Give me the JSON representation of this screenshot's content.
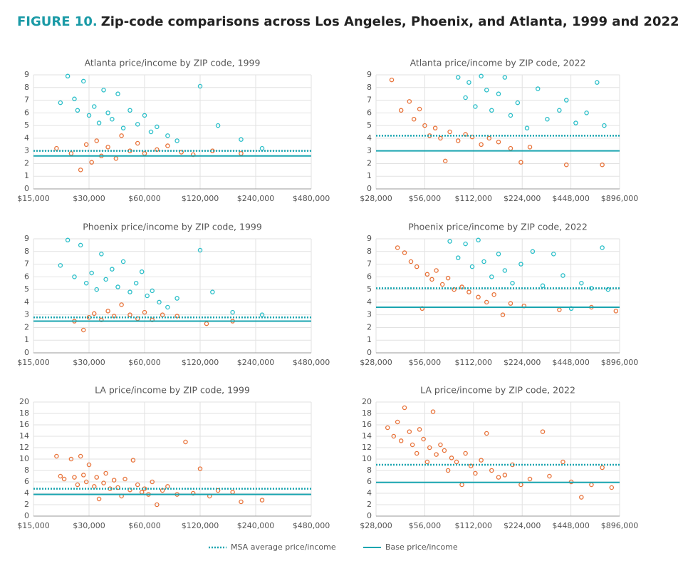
{
  "figure_label": "FIGURE 10.",
  "title": "Zip-code comparisons across Los Angeles, Phoenix, and Atlanta, 1999 and 2022",
  "legend": [
    "MSA average price/income",
    "Base price/income"
  ],
  "line_color": "#1aa5b0",
  "chart_data": [
    {
      "type": "scatter",
      "title": "Atlanta price/income by ZIP code, 1999",
      "xscale": "log",
      "grid": true,
      "xlim": [
        15000,
        480000
      ],
      "ylim": [
        0,
        9
      ],
      "xticks": [
        {
          "value": 15000,
          "label": "$15,000"
        },
        {
          "value": 30000,
          "label": "$30,000"
        },
        {
          "value": 60000,
          "label": "$60,000"
        },
        {
          "value": 120000,
          "label": "$120,000"
        },
        {
          "value": 240000,
          "label": "$240,000"
        },
        {
          "value": 480000,
          "label": "$480,000"
        }
      ],
      "yticks": [
        0,
        1,
        2,
        3,
        4,
        5,
        6,
        7,
        8,
        9
      ],
      "msa_average": 3.0,
      "base": 2.6,
      "series": [
        {
          "color": "#2bbfc9",
          "x": [
            21000,
            23000,
            25000,
            26000,
            28000,
            30000,
            32000,
            34000,
            36000,
            38000,
            40000,
            43000,
            46000,
            50000,
            55000,
            60000,
            65000,
            70000,
            80000,
            90000,
            120000,
            150000,
            200000,
            260000
          ],
          "values": [
            6.8,
            8.9,
            7.1,
            6.2,
            8.5,
            5.8,
            6.5,
            5.2,
            7.8,
            6.0,
            5.5,
            7.5,
            4.8,
            6.2,
            5.1,
            5.8,
            4.5,
            4.9,
            4.2,
            3.8,
            8.1,
            5.0,
            3.9,
            3.2
          ]
        },
        {
          "color": "#e8733a",
          "x": [
            20000,
            24000,
            27000,
            29000,
            31000,
            33000,
            35000,
            38000,
            42000,
            45000,
            50000,
            55000,
            60000,
            70000,
            80000,
            95000,
            110000,
            140000,
            200000
          ],
          "values": [
            3.2,
            2.8,
            1.5,
            3.5,
            2.1,
            3.8,
            2.6,
            3.3,
            2.4,
            4.2,
            3.0,
            3.6,
            2.8,
            3.1,
            3.4,
            2.9,
            2.7,
            3.0,
            2.8
          ]
        }
      ]
    },
    {
      "type": "scatter",
      "title": "Atlanta price/income by ZIP code, 2022",
      "xscale": "log",
      "grid": true,
      "xlim": [
        28000,
        896000
      ],
      "ylim": [
        0,
        9
      ],
      "xticks": [
        {
          "value": 28000,
          "label": "$28,000"
        },
        {
          "value": 56000,
          "label": "$56,000"
        },
        {
          "value": 112000,
          "label": "$112,000"
        },
        {
          "value": 224000,
          "label": "$224,000"
        },
        {
          "value": 448000,
          "label": "$448,000"
        },
        {
          "value": 896000,
          "label": "$896,000"
        }
      ],
      "yticks": [
        0,
        1,
        2,
        3,
        4,
        5,
        6,
        7,
        8,
        9
      ],
      "msa_average": 4.2,
      "base": 3.0,
      "series": [
        {
          "color": "#2bbfc9",
          "x": [
            90000,
            100000,
            105000,
            115000,
            125000,
            135000,
            145000,
            160000,
            175000,
            190000,
            210000,
            240000,
            280000,
            320000,
            380000,
            420000,
            480000,
            560000,
            650000,
            720000
          ],
          "values": [
            8.8,
            7.2,
            8.4,
            6.5,
            8.9,
            7.8,
            6.2,
            7.5,
            8.8,
            5.8,
            6.8,
            4.8,
            7.9,
            5.5,
            6.2,
            7.0,
            5.2,
            6.0,
            8.4,
            5.0
          ]
        },
        {
          "color": "#e8733a",
          "x": [
            35000,
            40000,
            45000,
            48000,
            52000,
            56000,
            60000,
            65000,
            70000,
            75000,
            80000,
            90000,
            100000,
            110000,
            125000,
            140000,
            160000,
            190000,
            220000,
            250000,
            420000,
            700000
          ],
          "values": [
            8.6,
            6.2,
            6.9,
            5.5,
            6.3,
            5.0,
            4.2,
            4.8,
            4.0,
            2.2,
            4.5,
            3.8,
            4.3,
            4.1,
            3.5,
            4.0,
            3.7,
            3.2,
            2.1,
            3.3,
            1.9,
            1.9
          ]
        }
      ]
    },
    {
      "type": "scatter",
      "title": "Phoenix price/income by ZIP code, 1999",
      "xscale": "log",
      "grid": true,
      "xlim": [
        15000,
        480000
      ],
      "ylim": [
        0,
        9
      ],
      "xticks": [
        {
          "value": 15000,
          "label": "$15,000"
        },
        {
          "value": 30000,
          "label": "$30,000"
        },
        {
          "value": 60000,
          "label": "$60,000"
        },
        {
          "value": 120000,
          "label": "$120,000"
        },
        {
          "value": 240000,
          "label": "$240,000"
        },
        {
          "value": 480000,
          "label": "$480,000"
        }
      ],
      "yticks": [
        0,
        1,
        2,
        3,
        4,
        5,
        6,
        7,
        8,
        9
      ],
      "msa_average": 2.8,
      "base": 2.5,
      "series": [
        {
          "color": "#2bbfc9",
          "x": [
            21000,
            23000,
            25000,
            27000,
            29000,
            31000,
            33000,
            35000,
            37000,
            40000,
            43000,
            46000,
            50000,
            54000,
            58000,
            62000,
            66000,
            72000,
            80000,
            90000,
            120000,
            140000,
            180000,
            260000
          ],
          "values": [
            6.9,
            8.9,
            6.0,
            8.5,
            5.5,
            6.3,
            5.0,
            7.8,
            5.8,
            6.6,
            5.2,
            7.2,
            4.8,
            5.5,
            6.4,
            4.5,
            4.9,
            4.0,
            3.6,
            4.3,
            8.1,
            4.8,
            3.2,
            3.0
          ]
        },
        {
          "color": "#e8733a",
          "x": [
            25000,
            28000,
            30000,
            32000,
            35000,
            38000,
            41000,
            45000,
            50000,
            55000,
            60000,
            66000,
            75000,
            90000,
            130000,
            180000
          ],
          "values": [
            2.5,
            1.8,
            2.8,
            3.1,
            2.6,
            3.3,
            2.9,
            3.8,
            3.0,
            2.7,
            3.2,
            2.6,
            3.0,
            2.9,
            2.3,
            2.5
          ]
        }
      ]
    },
    {
      "type": "scatter",
      "title": "Phoenix price/income by ZIP code, 2022",
      "xscale": "log",
      "grid": true,
      "xlim": [
        28000,
        896000
      ],
      "ylim": [
        0,
        9
      ],
      "xticks": [
        {
          "value": 28000,
          "label": "$28,000"
        },
        {
          "value": 56000,
          "label": "$56,000"
        },
        {
          "value": 112000,
          "label": "$112,000"
        },
        {
          "value": 224000,
          "label": "$224,000"
        },
        {
          "value": 448000,
          "label": "$448,000"
        },
        {
          "value": 896000,
          "label": "$896,000"
        }
      ],
      "yticks": [
        0,
        1,
        2,
        3,
        4,
        5,
        6,
        7,
        8,
        9
      ],
      "msa_average": 5.1,
      "base": 3.6,
      "series": [
        {
          "color": "#2bbfc9",
          "x": [
            80000,
            90000,
            100000,
            110000,
            120000,
            130000,
            145000,
            160000,
            175000,
            195000,
            220000,
            260000,
            300000,
            350000,
            400000,
            450000,
            520000,
            600000,
            700000,
            760000
          ],
          "values": [
            8.8,
            7.5,
            8.6,
            6.8,
            8.9,
            7.2,
            6.0,
            7.8,
            6.5,
            5.5,
            7.0,
            8.0,
            5.3,
            7.8,
            6.1,
            3.5,
            5.5,
            5.1,
            8.3,
            5.0
          ]
        },
        {
          "color": "#e8733a",
          "x": [
            38000,
            42000,
            46000,
            50000,
            54000,
            58000,
            62000,
            66000,
            72000,
            78000,
            85000,
            95000,
            105000,
            120000,
            135000,
            150000,
            170000,
            190000,
            230000,
            380000,
            600000,
            850000
          ],
          "values": [
            8.3,
            7.9,
            7.2,
            6.8,
            3.5,
            6.2,
            5.8,
            6.5,
            5.4,
            5.9,
            5.0,
            5.2,
            4.8,
            4.4,
            4.0,
            4.6,
            3.0,
            3.9,
            3.7,
            3.4,
            3.6,
            3.3
          ]
        }
      ]
    },
    {
      "type": "scatter",
      "title": "LA price/income by ZIP code, 1999",
      "xscale": "log",
      "grid": true,
      "xlim": [
        15000,
        480000
      ],
      "ylim": [
        0,
        20
      ],
      "xticks": [
        {
          "value": 15000,
          "label": "$15,000"
        },
        {
          "value": 30000,
          "label": "$30,000"
        },
        {
          "value": 60000,
          "label": "$60,000"
        },
        {
          "value": 120000,
          "label": "$120,000"
        },
        {
          "value": 240000,
          "label": "$240,000"
        },
        {
          "value": 480000,
          "label": "$480,000"
        }
      ],
      "yticks": [
        0,
        2,
        4,
        6,
        8,
        10,
        12,
        14,
        16,
        18,
        20
      ],
      "msa_average": 4.8,
      "base": 3.8,
      "series": [
        {
          "color": "#e8733a",
          "x": [
            20000,
            21000,
            22000,
            24000,
            25000,
            26000,
            27000,
            28000,
            29000,
            30000,
            32000,
            33000,
            34000,
            36000,
            37000,
            39000,
            41000,
            43000,
            45000,
            47000,
            50000,
            52000,
            55000,
            58000,
            60000,
            63000,
            66000,
            70000,
            75000,
            80000,
            90000,
            100000,
            110000,
            120000,
            135000,
            150000,
            180000,
            200000,
            260000
          ],
          "values": [
            10.5,
            7.0,
            6.5,
            10.0,
            6.8,
            5.5,
            10.5,
            7.2,
            6.0,
            9.0,
            5.2,
            6.8,
            3.0,
            5.8,
            7.5,
            4.8,
            6.3,
            5.0,
            3.5,
            6.5,
            4.6,
            9.8,
            5.5,
            4.2,
            4.8,
            3.8,
            6.0,
            2.0,
            4.5,
            5.2,
            3.8,
            13.0,
            4.0,
            8.3,
            3.5,
            4.5,
            4.2,
            2.5,
            2.8
          ]
        }
      ]
    },
    {
      "type": "scatter",
      "title": "LA price/income by ZIP code, 2022",
      "xscale": "log",
      "grid": true,
      "xlim": [
        28000,
        896000
      ],
      "ylim": [
        0,
        20
      ],
      "xticks": [
        {
          "value": 28000,
          "label": "$28,000"
        },
        {
          "value": 56000,
          "label": "$56,000"
        },
        {
          "value": 112000,
          "label": "$112,000"
        },
        {
          "value": 224000,
          "label": "$224,000"
        },
        {
          "value": 448000,
          "label": "$448,000"
        },
        {
          "value": 896000,
          "label": "$896,000"
        }
      ],
      "yticks": [
        0,
        2,
        4,
        6,
        8,
        10,
        12,
        14,
        16,
        18,
        20
      ],
      "msa_average": 9.0,
      "base": 5.9,
      "series": [
        {
          "color": "#e8733a",
          "x": [
            33000,
            36000,
            38000,
            40000,
            42000,
            45000,
            47000,
            50000,
            52000,
            55000,
            58000,
            60000,
            63000,
            66000,
            70000,
            74000,
            78000,
            82000,
            88000,
            95000,
            100000,
            108000,
            115000,
            125000,
            135000,
            145000,
            160000,
            175000,
            195000,
            220000,
            250000,
            300000,
            330000,
            400000,
            450000,
            520000,
            600000,
            700000,
            800000
          ],
          "values": [
            15.5,
            14.0,
            16.5,
            13.2,
            19.0,
            14.8,
            12.5,
            11.0,
            15.2,
            13.5,
            9.5,
            12.0,
            18.3,
            10.8,
            12.5,
            11.5,
            8.0,
            10.2,
            9.5,
            5.5,
            11.0,
            8.8,
            7.5,
            9.8,
            14.5,
            8.0,
            6.8,
            7.2,
            9.0,
            5.5,
            6.5,
            14.8,
            7.0,
            9.5,
            6.0,
            3.3,
            5.5,
            8.5,
            5.0
          ]
        }
      ]
    }
  ]
}
